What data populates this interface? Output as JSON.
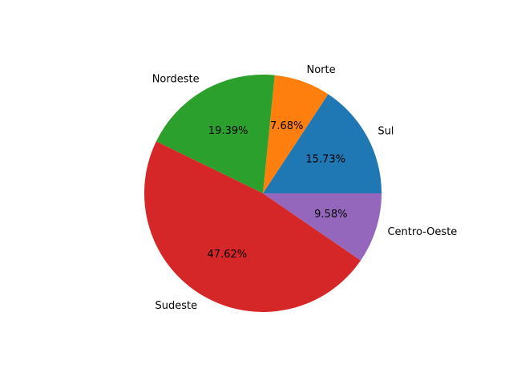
{
  "chart_data": {
    "type": "pie",
    "title": "",
    "categories": [
      "Sul",
      "Norte",
      "Nordeste",
      "Sudeste",
      "Centro-Oeste"
    ],
    "values": [
      15.73,
      7.68,
      19.39,
      47.62,
      9.58
    ],
    "value_labels": [
      "15.73%",
      "7.68%",
      "19.39%",
      "47.62%",
      "9.58%"
    ],
    "colors": [
      "#1f77b4",
      "#ff7f0e",
      "#2ca02c",
      "#d62728",
      "#9467bd"
    ],
    "start_angle_deg": 0,
    "direction": "counterclockwise",
    "legend": "none"
  }
}
